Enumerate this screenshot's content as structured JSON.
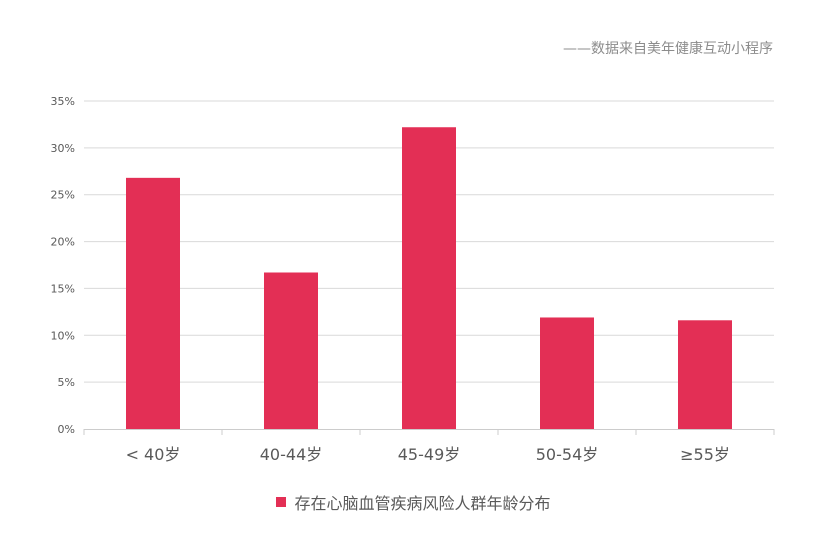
{
  "source_note": "——数据来自美年健康互动小程序",
  "chart_data": {
    "type": "bar",
    "categories": [
      "< 40岁",
      "40-44岁",
      "45-49岁",
      "50-54岁",
      "≥55岁"
    ],
    "series": [
      {
        "name": "存在心脑血管疾病风险人群年龄分布",
        "values": [
          26.8,
          16.7,
          32.2,
          11.9,
          11.6
        ],
        "color": "#e32f55"
      }
    ],
    "yticks": [
      "0%",
      "5%",
      "10%",
      "15%",
      "20%",
      "25%",
      "30%",
      "35%"
    ],
    "ylim": [
      0,
      35
    ],
    "y_unit": "%",
    "grid": true,
    "legend_position": "bottom-center",
    "gridline_color": "#d9d9d9",
    "axis_color": "#cccccc"
  }
}
